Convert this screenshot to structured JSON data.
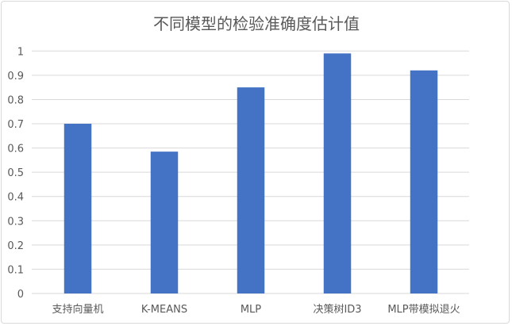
{
  "chart_data": {
    "type": "bar",
    "title": "不同模型的检验准确度估计值",
    "categories": [
      "支持向量机",
      "K-MEANS",
      "MLP",
      "决策树ID3",
      "MLP带模拟退火"
    ],
    "values": [
      0.7,
      0.585,
      0.85,
      0.99,
      0.92
    ],
    "ylim": [
      0,
      1
    ],
    "yticks": [
      "0",
      "0.1",
      "0.2",
      "0.3",
      "0.4",
      "0.5",
      "0.6",
      "0.7",
      "0.8",
      "0.9",
      "1"
    ],
    "xlabel": "",
    "ylabel": "",
    "grid": true,
    "legend": "none",
    "bar_color": "#4472C4"
  }
}
